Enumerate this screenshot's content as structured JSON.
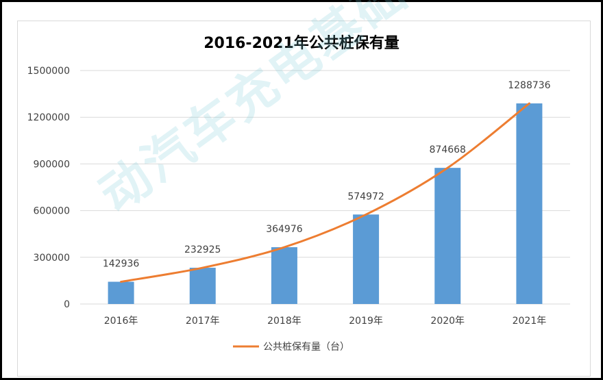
{
  "chart_data": {
    "type": "bar",
    "title": "2016-2021年公共桩保有量",
    "categories": [
      "2016年",
      "2017年",
      "2018年",
      "2019年",
      "2020年",
      "2021年"
    ],
    "values": [
      142936,
      232925,
      364976,
      574972,
      874668,
      1288736
    ],
    "data_labels": [
      "142936",
      "232925",
      "364976",
      "574972",
      "874668",
      "1288736"
    ],
    "y_ticks": [
      0,
      300000,
      600000,
      900000,
      1200000,
      1500000
    ],
    "ylim": [
      0,
      1500000
    ],
    "grid": true,
    "overlay_line": {
      "legend_label": "公共桩保有量（台）"
    },
    "legend_position": "bottom",
    "colors": {
      "bar": "#5b9bd5",
      "line": "#ed7d31",
      "grid": "#d9d9d9"
    }
  },
  "watermark": "动汽车充电基础设施促进"
}
